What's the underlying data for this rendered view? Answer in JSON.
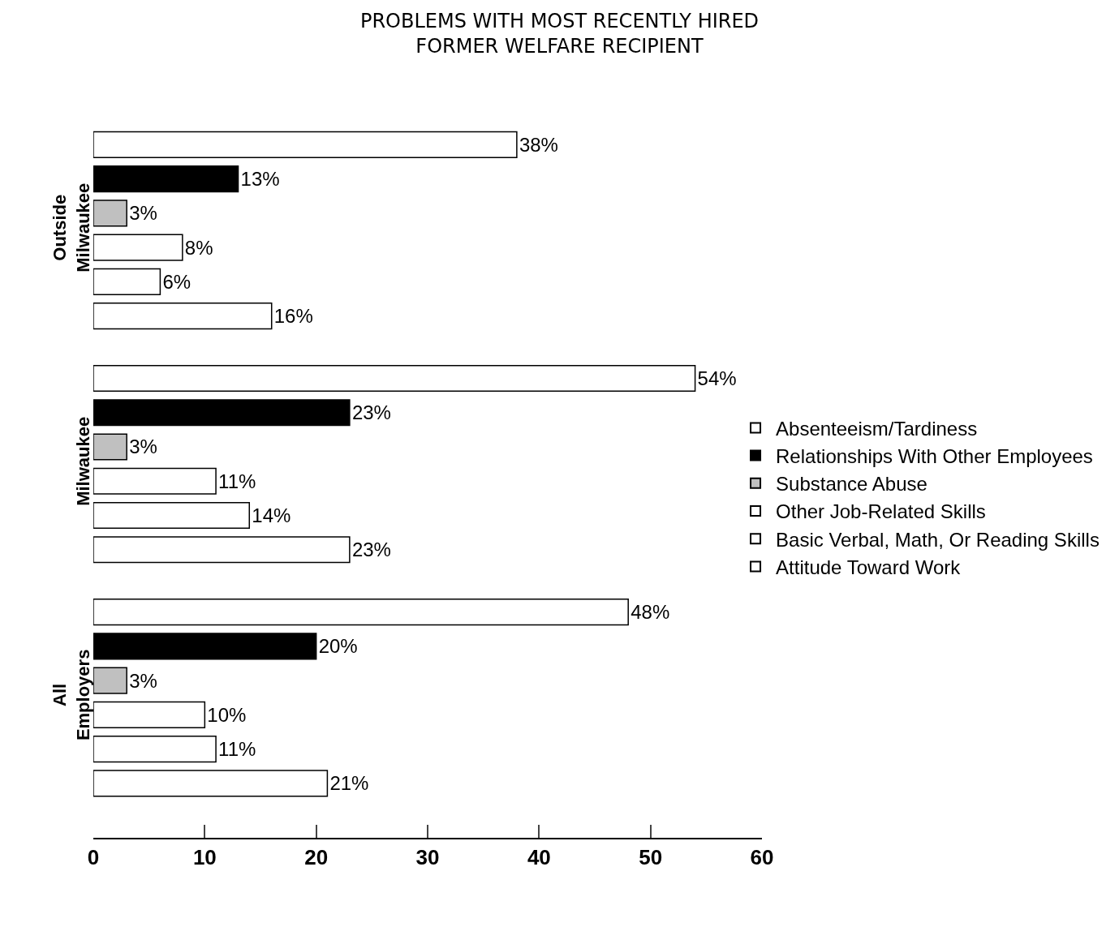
{
  "chart_data": {
    "type": "bar",
    "orientation": "horizontal",
    "title": "PROBLEMS WITH MOST RECENTLY HIRED\nFORMER WELFARE RECIPIENT",
    "categories": [
      "Outside Milwaukee",
      "Milwaukee",
      "All Employers"
    ],
    "series": [
      {
        "name": "Absenteeism/Tardiness",
        "color": "#ffffff",
        "values": [
          38,
          54,
          48
        ],
        "value_labels": [
          "38%",
          "54%",
          "48%"
        ]
      },
      {
        "name": "Relationships With Other Employees",
        "color": "#000000",
        "values": [
          13,
          23,
          20
        ],
        "value_labels": [
          "13%",
          "23%",
          "20%"
        ]
      },
      {
        "name": "Substance Abuse",
        "color": "#c0c0c0",
        "values": [
          3,
          3,
          3
        ],
        "value_labels": [
          "3%",
          "3%",
          "3%"
        ]
      },
      {
        "name": "Other Job-Related Skills",
        "color": "#ffffff",
        "values": [
          8,
          11,
          10
        ],
        "value_labels": [
          "8%",
          "11%",
          "10%"
        ]
      },
      {
        "name": "Basic Verbal, Math, Or Reading Skills",
        "color": "#ffffff",
        "values": [
          6,
          14,
          11
        ],
        "value_labels": [
          "6%",
          "14%",
          "11%"
        ]
      },
      {
        "name": "Attitude Toward Work",
        "color": "#ffffff",
        "values": [
          16,
          23,
          21
        ],
        "value_labels": [
          "16%",
          "23%",
          "21%"
        ]
      }
    ],
    "xlim": [
      0,
      60
    ],
    "xticks": [
      0,
      10,
      20,
      30,
      40,
      50,
      60
    ],
    "grid": false,
    "legend": "right"
  }
}
